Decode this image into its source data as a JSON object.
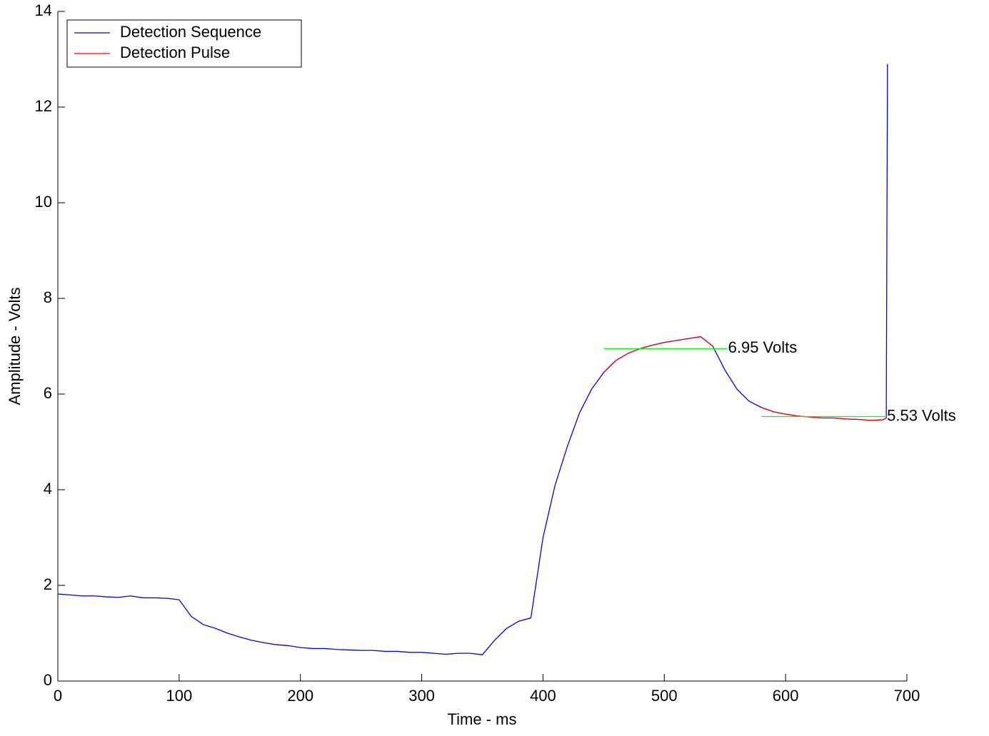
{
  "chart_data": {
    "type": "line",
    "xlabel": "Time - ms",
    "ylabel": "Amplitude - Volts",
    "x": [
      0,
      10,
      20,
      30,
      40,
      50,
      60,
      70,
      80,
      90,
      100,
      110,
      120,
      130,
      140,
      150,
      160,
      170,
      180,
      190,
      200,
      210,
      220,
      230,
      240,
      250,
      260,
      270,
      280,
      290,
      300,
      310,
      320,
      330,
      340,
      350,
      360,
      370,
      380,
      390,
      400,
      410,
      420,
      430,
      440,
      450,
      460,
      470,
      480,
      490,
      500,
      510,
      520,
      530,
      540,
      550,
      560,
      570,
      580,
      590,
      600,
      610,
      620,
      630,
      640,
      650,
      660,
      670,
      680,
      683,
      684
    ],
    "series": [
      {
        "name": "Detection Sequence",
        "color": "#0000ff",
        "values": [
          1.82,
          1.8,
          1.78,
          1.78,
          1.76,
          1.75,
          1.78,
          1.74,
          1.74,
          1.73,
          1.7,
          1.35,
          1.18,
          1.1,
          1.0,
          0.92,
          0.85,
          0.8,
          0.76,
          0.74,
          0.7,
          0.68,
          0.68,
          0.66,
          0.65,
          0.64,
          0.64,
          0.62,
          0.62,
          0.6,
          0.6,
          0.58,
          0.56,
          0.58,
          0.58,
          0.55,
          0.85,
          1.1,
          1.25,
          1.32,
          3.0,
          4.1,
          4.9,
          5.6,
          6.1,
          6.45,
          6.7,
          6.85,
          6.95,
          7.02,
          7.08,
          7.12,
          7.16,
          7.2,
          7.0,
          6.5,
          6.1,
          5.85,
          5.72,
          5.63,
          5.58,
          5.54,
          5.52,
          5.5,
          5.5,
          5.48,
          5.47,
          5.45,
          5.46,
          5.5,
          12.9
        ]
      },
      {
        "name": "Detection Pulse",
        "color": "#ff0000",
        "values": [
          null,
          null,
          null,
          null,
          null,
          null,
          null,
          null,
          null,
          null,
          null,
          null,
          null,
          null,
          null,
          null,
          null,
          null,
          null,
          null,
          null,
          null,
          null,
          null,
          null,
          null,
          null,
          null,
          null,
          null,
          null,
          null,
          null,
          null,
          null,
          null,
          null,
          null,
          null,
          null,
          null,
          null,
          null,
          null,
          null,
          6.45,
          6.7,
          6.85,
          6.95,
          7.02,
          7.08,
          7.12,
          7.16,
          7.2,
          7.0,
          null,
          null,
          null,
          5.72,
          5.63,
          5.58,
          5.54,
          5.52,
          5.5,
          5.5,
          5.48,
          5.47,
          5.45,
          5.46,
          5.5,
          null
        ]
      }
    ],
    "levels": [
      {
        "value": 6.95,
        "label": "6.95 Volts",
        "xstart": 450,
        "xend": 552,
        "color": "#00ff00"
      },
      {
        "value": 5.53,
        "label": "5.53 Volts",
        "xstart": 580,
        "xend": 683,
        "color": "#00ff00"
      }
    ],
    "xlim": [
      0,
      700
    ],
    "xticks": [
      0,
      100,
      200,
      300,
      400,
      500,
      600,
      700
    ],
    "ylim": [
      0,
      14
    ],
    "yticks": [
      0,
      2,
      4,
      6,
      8,
      10,
      12,
      14
    ],
    "legend": "upper left"
  }
}
